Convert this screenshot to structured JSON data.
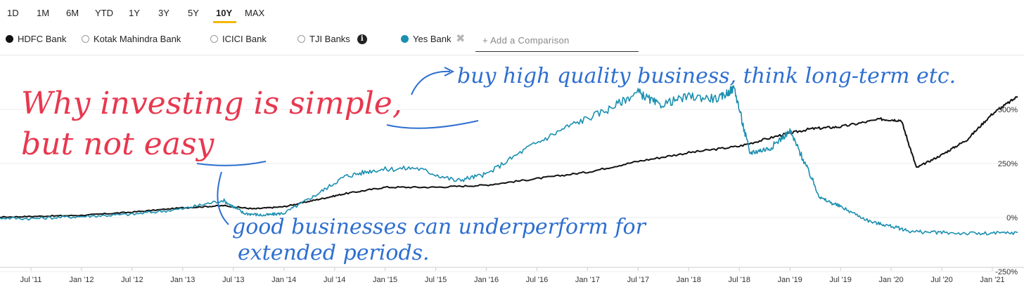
{
  "ranges": [
    {
      "label": "1D"
    },
    {
      "label": "1M"
    },
    {
      "label": "6M"
    },
    {
      "label": "YTD"
    },
    {
      "label": "1Y"
    },
    {
      "label": "3Y"
    },
    {
      "label": "5Y"
    },
    {
      "label": "10Y"
    },
    {
      "label": "MAX"
    }
  ],
  "active_range": "10Y",
  "colors": {
    "hdfc": "#111111",
    "yes": "#1a8fb0",
    "accent": "#f2b705",
    "note_red": "#e8384f",
    "note_blue": "#2e6fd0"
  },
  "legend": [
    {
      "label": "HDFC Bank",
      "style": "filled",
      "color": "#111111"
    },
    {
      "label": "Kotak Mahindra Bank",
      "style": "hollow"
    },
    {
      "label": "ICICI Bank",
      "style": "hollow"
    },
    {
      "label": "TJI Banks",
      "style": "hollow",
      "icon": "info-icon"
    },
    {
      "label": "Yes Bank",
      "style": "filled",
      "color": "#1a8fb0",
      "removable": true
    }
  ],
  "compare": {
    "placeholder": "+ Add a Comparison"
  },
  "annotations": {
    "title_line1": "Why investing is simple,",
    "title_line2": "but not easy",
    "note_top": "buy high quality business, think long-term etc.",
    "note_bottom_line1": "good businesses can underperform for",
    "note_bottom_line2": "extended periods."
  },
  "chart_data": {
    "type": "line",
    "x_ticks": [
      "Jul '11",
      "Jan '12",
      "Jul '12",
      "Jan '13",
      "Jul '13",
      "Jan '14",
      "Jul '14",
      "Jan '15",
      "Jul '15",
      "Jan '16",
      "Jul '16",
      "Jan '17",
      "Jul '17",
      "Jan '18",
      "Jul '18",
      "Jan '19",
      "Jul '19",
      "Jan '20",
      "Jul '20",
      "Jan '21"
    ],
    "y_ticks": [
      "500%",
      "250%",
      "0%",
      "-250%"
    ],
    "y_tick_values": [
      500,
      250,
      0,
      -250
    ],
    "ylim": [
      -250,
      500
    ],
    "series": [
      {
        "name": "HDFC Bank",
        "color": "#111111",
        "x": [
          2011.0,
          2011.5,
          2012.0,
          2012.5,
          2013.0,
          2013.4,
          2013.7,
          2014.0,
          2014.3,
          2014.6,
          2015.0,
          2015.5,
          2016.0,
          2016.5,
          2017.0,
          2017.5,
          2018.0,
          2018.5,
          2018.9,
          2019.2,
          2019.5,
          2019.9,
          2020.1,
          2020.25,
          2020.5,
          2020.75,
          2021.0,
          2021.25
        ],
        "y": [
          0,
          5,
          10,
          25,
          45,
          55,
          40,
          50,
          80,
          110,
          140,
          140,
          150,
          180,
          210,
          260,
          300,
          330,
          380,
          410,
          420,
          455,
          450,
          230,
          290,
          360,
          480,
          560
        ]
      },
      {
        "name": "Yes Bank",
        "color": "#1a8fb0",
        "x": [
          2011.0,
          2011.5,
          2012.0,
          2012.5,
          2013.0,
          2013.4,
          2013.6,
          2013.8,
          2014.0,
          2014.3,
          2014.6,
          2014.9,
          2015.3,
          2015.7,
          2016.0,
          2016.4,
          2016.8,
          2017.2,
          2017.5,
          2017.7,
          2018.0,
          2018.3,
          2018.45,
          2018.6,
          2018.8,
          2019.0,
          2019.15,
          2019.3,
          2019.5,
          2019.8,
          2020.0,
          2020.2,
          2020.5,
          2020.9,
          2021.25
        ],
        "y": [
          0,
          -5,
          5,
          15,
          40,
          80,
          20,
          10,
          20,
          100,
          190,
          220,
          230,
          170,
          200,
          320,
          420,
          500,
          580,
          520,
          560,
          550,
          600,
          300,
          320,
          400,
          250,
          90,
          50,
          -20,
          -40,
          -65,
          -70,
          -75,
          -70
        ]
      }
    ]
  }
}
